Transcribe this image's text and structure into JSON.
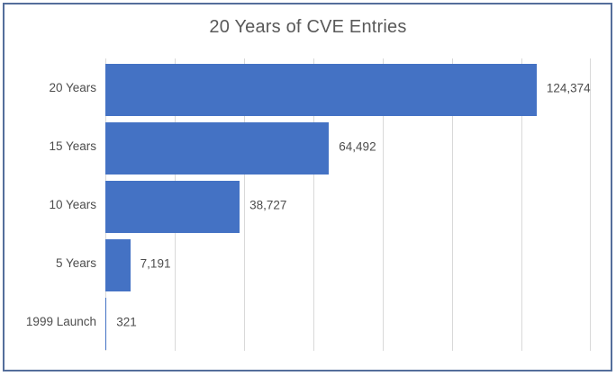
{
  "chart_data": {
    "type": "bar",
    "orientation": "horizontal",
    "title": "20 Years of CVE Entries",
    "categories": [
      "20 Years",
      "15 Years",
      "10 Years",
      "5 Years",
      "1999 Launch"
    ],
    "values": [
      124374,
      64492,
      38727,
      7191,
      321
    ],
    "value_labels": [
      "124,374",
      "64,492",
      "38,727",
      "7,191",
      "321"
    ],
    "xlabel": "",
    "ylabel": "",
    "xlim": [
      0,
      140000
    ],
    "gridline_step": 20000,
    "grid": true,
    "legend": false,
    "axis_tick_labels_visible": false,
    "colors": {
      "bar": "#4472C4",
      "gridline": "#D9D9D9",
      "label": "#4D4D4D",
      "title": "#595959",
      "frame_border": "#546E9B",
      "background": "#FFFFFF"
    }
  }
}
